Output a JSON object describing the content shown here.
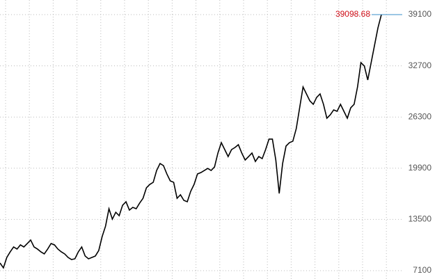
{
  "chart_data": {
    "type": "line",
    "color": "#000000",
    "grid": true,
    "ylim": [
      7100,
      39100
    ],
    "yticks": [
      7100,
      13500,
      19900,
      26300,
      32700,
      39100
    ],
    "values": [
      8057,
      7450,
      8750,
      9450,
      10060,
      9800,
      10320,
      10060,
      10490,
      10930,
      10060,
      9800,
      9450,
      9190,
      9800,
      10490,
      10320,
      9800,
      9450,
      9190,
      8750,
      8490,
      8580,
      9450,
      10060,
      8930,
      8580,
      8750,
      8930,
      9620,
      11360,
      12670,
      14840,
      13540,
      14400,
      13970,
      15270,
      15710,
      14670,
      15010,
      14840,
      15540,
      16140,
      17450,
      17880,
      18140,
      19620,
      20490,
      20230,
      19190,
      18320,
      18140,
      16140,
      16580,
      15880,
      15710,
      17010,
      17880,
      19190,
      19360,
      19620,
      19880,
      19620,
      20060,
      21800,
      23100,
      22230,
      21360,
      22230,
      22490,
      22840,
      21800,
      20930,
      21360,
      21800,
      20750,
      21360,
      21100,
      22230,
      23540,
      23540,
      20930,
      16750,
      20490,
      22670,
      23100,
      23280,
      24840,
      27450,
      30060,
      29190,
      28320,
      27890,
      28760,
      29190,
      27890,
      26150,
      26580,
      27190,
      27010,
      27890,
      27010,
      26150,
      27450,
      27890,
      30060,
      33100,
      32670,
      30930,
      33100,
      35280,
      37450,
      39098.68
    ]
  }
}
